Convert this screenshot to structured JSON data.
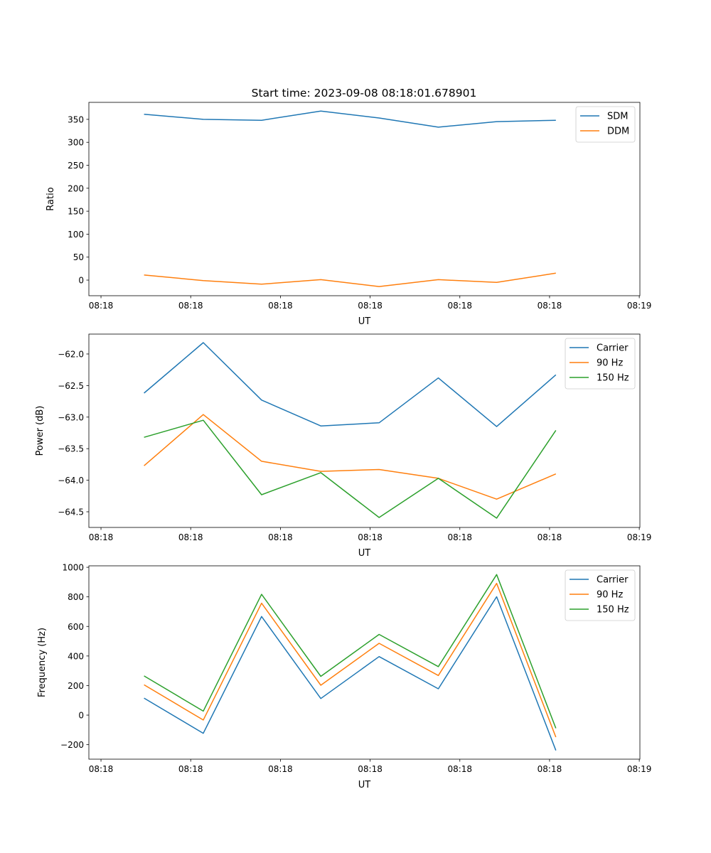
{
  "title": "Start time: 2023-09-08 08:18:01.678901",
  "chart_data": [
    {
      "type": "line",
      "xlabel": "UT",
      "ylabel": "Ratio",
      "x_seconds_after_0818": [
        4.8,
        11.4,
        17.9,
        24.5,
        31.0,
        37.6,
        44.1,
        50.7
      ],
      "xlim": [
        -1.35,
        60.07
      ],
      "xticks": [
        0,
        10,
        20,
        30,
        40,
        50,
        60
      ],
      "xticklabels": [
        "08:18",
        "08:18",
        "08:18",
        "08:18",
        "08:18",
        "08:18",
        "08:19"
      ],
      "ylim": [
        -34,
        387
      ],
      "yticks": [
        0,
        50,
        100,
        150,
        200,
        250,
        300,
        350
      ],
      "yticklabels": [
        "0",
        "50",
        "100",
        "150",
        "200",
        "250",
        "300",
        "350"
      ],
      "legend": "top-right",
      "series": [
        {
          "name": "SDM",
          "color": "#1f77b4",
          "values": [
            361,
            350,
            348,
            368,
            353,
            333,
            345,
            348
          ]
        },
        {
          "name": "DDM",
          "color": "#ff7f0e",
          "values": [
            11,
            -1,
            -9,
            1,
            -14,
            1,
            -5,
            15
          ]
        }
      ]
    },
    {
      "type": "line",
      "xlabel": "UT",
      "ylabel": "Power (dB)",
      "x_seconds_after_0818": [
        4.8,
        11.4,
        17.9,
        24.5,
        31.0,
        37.6,
        44.1,
        50.7
      ],
      "xlim": [
        -1.35,
        60.07
      ],
      "xticks": [
        0,
        10,
        20,
        30,
        40,
        50,
        60
      ],
      "xticklabels": [
        "08:18",
        "08:18",
        "08:18",
        "08:18",
        "08:18",
        "08:18",
        "08:19"
      ],
      "ylim": [
        -64.748,
        -61.685
      ],
      "yticks": [
        -62.0,
        -62.5,
        -63.0,
        -63.5,
        -64.0,
        -64.5
      ],
      "yticklabels": [
        "−62.0",
        "−62.5",
        "−63.0",
        "−63.5",
        "−64.0",
        "−64.5"
      ],
      "legend": "top-right",
      "series": [
        {
          "name": "Carrier",
          "color": "#1f77b4",
          "values": [
            -62.62,
            -61.82,
            -62.73,
            -63.14,
            -63.09,
            -62.38,
            -63.15,
            -62.33
          ]
        },
        {
          "name": "90 Hz",
          "color": "#ff7f0e",
          "values": [
            -63.77,
            -62.96,
            -63.7,
            -63.86,
            -63.83,
            -63.97,
            -64.3,
            -63.9
          ]
        },
        {
          "name": "150 Hz",
          "color": "#2ca02c",
          "values": [
            -63.32,
            -63.05,
            -64.23,
            -63.88,
            -64.59,
            -63.97,
            -64.6,
            -63.21
          ]
        }
      ]
    },
    {
      "type": "line",
      "xlabel": "UT",
      "ylabel": "Frequency (Hz)",
      "x_seconds_after_0818": [
        4.8,
        11.4,
        17.9,
        24.5,
        31.0,
        37.6,
        44.1,
        50.7
      ],
      "xlim": [
        -1.35,
        60.07
      ],
      "xticks": [
        0,
        10,
        20,
        30,
        40,
        50,
        60
      ],
      "xticklabels": [
        "08:18",
        "08:18",
        "08:18",
        "08:18",
        "08:18",
        "08:18",
        "08:19"
      ],
      "ylim": [
        -298,
        1010
      ],
      "yticks": [
        -200,
        0,
        200,
        400,
        600,
        800,
        1000
      ],
      "yticklabels": [
        "−200",
        "0",
        "200",
        "400",
        "600",
        "800",
        "1000"
      ],
      "legend": "top-right",
      "series": [
        {
          "name": "Carrier",
          "color": "#1f77b4",
          "values": [
            115,
            -123,
            667,
            112,
            396,
            178,
            801,
            -239
          ]
        },
        {
          "name": "90 Hz",
          "color": "#ff7f0e",
          "values": [
            205,
            -33,
            757,
            202,
            486,
            268,
            891,
            -149
          ]
        },
        {
          "name": "150 Hz",
          "color": "#2ca02c",
          "values": [
            265,
            27,
            817,
            262,
            546,
            328,
            951,
            -89
          ]
        }
      ]
    }
  ]
}
